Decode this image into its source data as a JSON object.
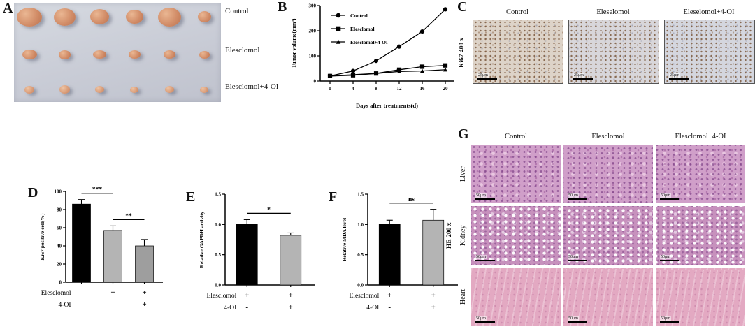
{
  "panels": {
    "A": {
      "label": "A",
      "rows": [
        {
          "label": "Control",
          "tumors": [
            [
              36,
              27
            ],
            [
              31,
              25
            ],
            [
              27,
              22
            ],
            [
              25,
              20
            ],
            [
              33,
              27
            ],
            [
              19,
              16
            ]
          ]
        },
        {
          "label": "Elesclomol",
          "tumors": [
            [
              21,
              14
            ],
            [
              17,
              13
            ],
            [
              19,
              12
            ],
            [
              17,
              12
            ],
            [
              17,
              12
            ],
            [
              15,
              11
            ]
          ]
        },
        {
          "label": "Elesclomol+4-OI",
          "tumors": [
            [
              14,
              11
            ],
            [
              15,
              12
            ],
            [
              13,
              10
            ],
            [
              12,
              9
            ],
            [
              13,
              10
            ],
            [
              12,
              9
            ]
          ]
        }
      ]
    },
    "B": {
      "label": "B"
    },
    "C": {
      "label": "C",
      "side_label": "Ki67 400 x",
      "columns": [
        "Control",
        "Eleselomol",
        "Eleselomol+4-OI"
      ],
      "scale_bar": "25μm"
    },
    "D": {
      "label": "D"
    },
    "E": {
      "label": "E"
    },
    "F": {
      "label": "F"
    },
    "G": {
      "label": "G",
      "side_label": "HE 200 x",
      "columns": [
        "Control",
        "Elesclomol",
        "Elesclomol+4-OI"
      ],
      "rows": [
        "Liver",
        "Kidney",
        "Heart"
      ],
      "scale_bar": "50μm"
    }
  },
  "chart_data": [
    {
      "id": "B",
      "type": "line",
      "title": "",
      "xlabel": "Days after treatments(d)",
      "ylabel": "Tumor volume(mm³)",
      "x": [
        0,
        4,
        8,
        12,
        16,
        20
      ],
      "xticks": [
        0,
        4,
        8,
        12,
        16,
        20
      ],
      "ylim": [
        0,
        300
      ],
      "yticks": [
        0,
        100,
        200,
        300
      ],
      "ytick_labels": [
        "0",
        "100",
        "200",
        "300"
      ],
      "legend_position": "upper-left",
      "grid": false,
      "series": [
        {
          "name": "Control",
          "marker": "circle",
          "values": [
            20,
            40,
            80,
            137,
            197,
            285
          ]
        },
        {
          "name": "Elesclomol",
          "marker": "square",
          "values": [
            20,
            23,
            30,
            45,
            57,
            62
          ]
        },
        {
          "name": "Elesclomol+4-OI",
          "marker": "triangle",
          "values": [
            20,
            25,
            30,
            38,
            40,
            45
          ]
        }
      ]
    },
    {
      "id": "D",
      "type": "bar",
      "ylabel": "Ki67 positive cell(%)",
      "ylim": [
        0,
        100
      ],
      "yticks": [
        0,
        20,
        40,
        60,
        80,
        100
      ],
      "ytick_labels": [
        "0",
        "20",
        "40",
        "60",
        "80",
        "100"
      ],
      "values": [
        86,
        57,
        40
      ],
      "errors": [
        5,
        5,
        7
      ],
      "colors": [
        "#000000",
        "#b4b4b4",
        "#9e9e9e"
      ],
      "significance": [
        {
          "between": [
            0,
            1
          ],
          "label": "***"
        },
        {
          "between": [
            1,
            2
          ],
          "label": "**"
        }
      ],
      "xrows": [
        {
          "label": "Elesclomol",
          "values": [
            "-",
            "+",
            "+"
          ]
        },
        {
          "label": "4-OI",
          "values": [
            "-",
            "-",
            "+"
          ]
        }
      ]
    },
    {
      "id": "E",
      "type": "bar",
      "ylabel": "Relative GAPDH activity",
      "ylim": [
        0,
        1.5
      ],
      "yticks": [
        0,
        0.5,
        1.0,
        1.5
      ],
      "ytick_labels": [
        "0.0",
        "0.5",
        "1.0",
        "1.5"
      ],
      "values": [
        1.0,
        0.82
      ],
      "errors": [
        0.08,
        0.04
      ],
      "colors": [
        "#000000",
        "#b4b4b4"
      ],
      "significance": [
        {
          "between": [
            0,
            1
          ],
          "label": "*"
        }
      ],
      "xrows": [
        {
          "label": "Elesclomol",
          "values": [
            "+",
            "+"
          ]
        },
        {
          "label": "4-OI",
          "values": [
            "-",
            "+"
          ]
        }
      ]
    },
    {
      "id": "F",
      "type": "bar",
      "ylabel": "Relative MDA level",
      "ylim": [
        0,
        1.5
      ],
      "yticks": [
        0,
        0.5,
        1.0,
        1.5
      ],
      "ytick_labels": [
        "0.0",
        "0.5",
        "1.0",
        "1.5"
      ],
      "values": [
        1.0,
        1.07
      ],
      "errors": [
        0.07,
        0.18
      ],
      "colors": [
        "#000000",
        "#b4b4b4"
      ],
      "significance": [
        {
          "between": [
            0,
            1
          ],
          "label": "ns"
        }
      ],
      "xrows": [
        {
          "label": "Elesclomol",
          "values": [
            "+",
            "+"
          ]
        },
        {
          "label": "4-OI",
          "values": [
            "-",
            "+"
          ]
        }
      ]
    }
  ]
}
